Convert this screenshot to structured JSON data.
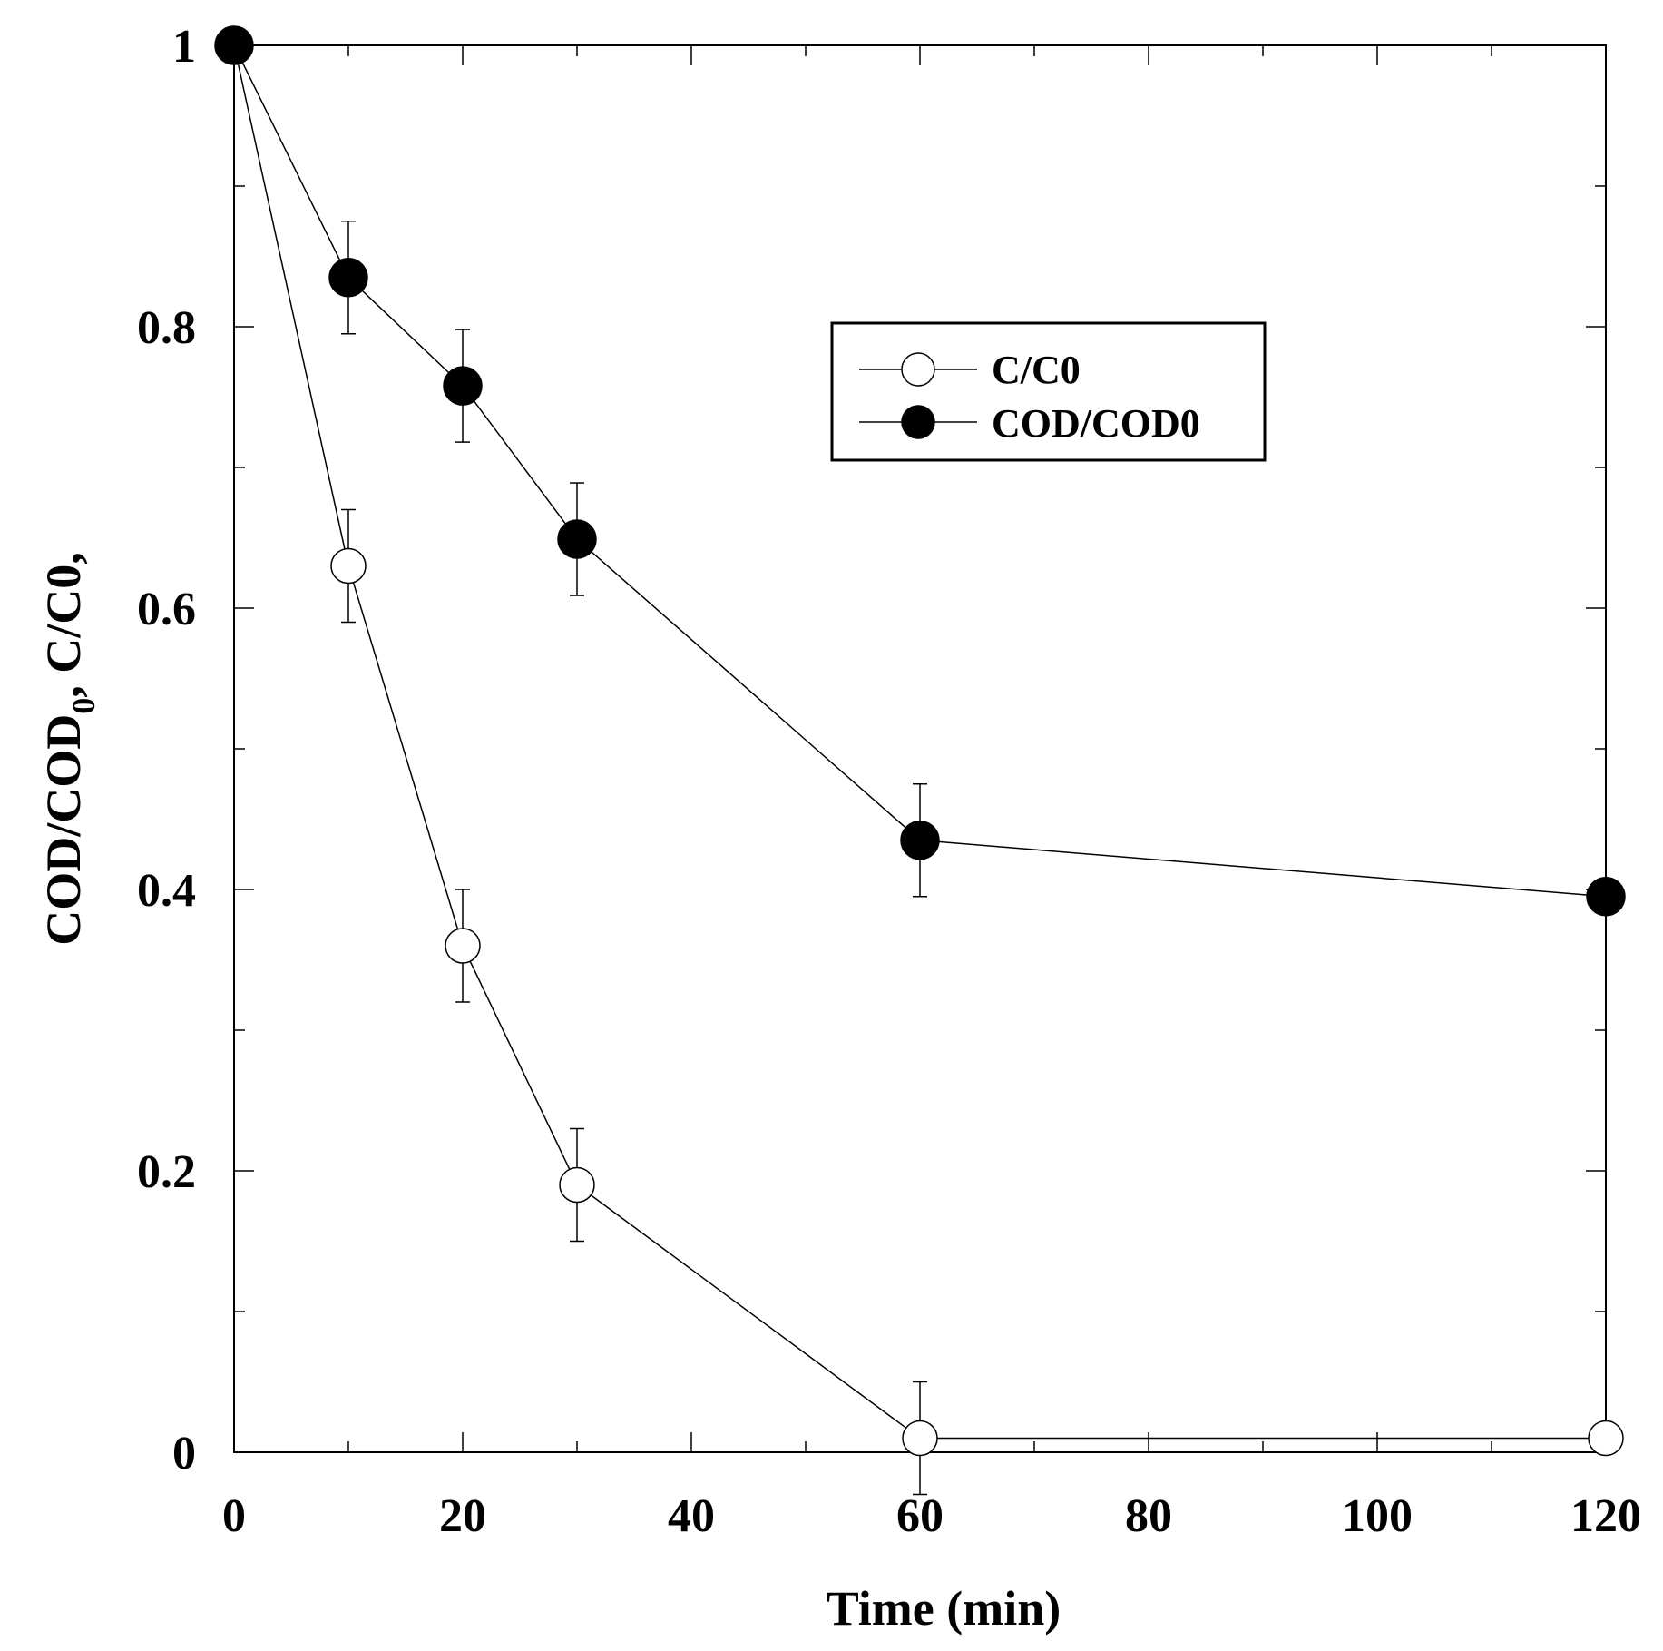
{
  "chart_data": {
    "type": "line",
    "title": "",
    "xlabel": "Time (min)",
    "ylabel": {
      "main": "COD/COD",
      "subscript": "0",
      "rest": ", C/C0,"
    },
    "xlim": [
      0,
      120
    ],
    "ylim": [
      0,
      1
    ],
    "xticks": [
      0,
      20,
      40,
      60,
      80,
      100,
      120
    ],
    "xtick_labels": [
      "0",
      "20",
      "40",
      "60",
      "80",
      "100",
      "120"
    ],
    "yticks": [
      0,
      0.2,
      0.4,
      0.6,
      0.8,
      1
    ],
    "ytick_labels": [
      "0",
      "0.2",
      "0.4",
      "0.6",
      "0.8",
      "1"
    ],
    "grid": false,
    "legend_position": "upper-right-inner",
    "series": [
      {
        "name": "C/C0",
        "marker": "open-circle",
        "x": [
          0,
          10,
          20,
          30,
          60,
          120
        ],
        "y": [
          1.0,
          0.63,
          0.36,
          0.19,
          0.01,
          0.01
        ],
        "error": [
          0,
          0.04,
          0.04,
          0.04,
          0.04,
          0
        ]
      },
      {
        "name": "COD/COD0",
        "marker": "filled-circle",
        "x": [
          0,
          10,
          20,
          30,
          60,
          120
        ],
        "y": [
          1.0,
          0.835,
          0.758,
          0.649,
          0.435,
          0.395
        ],
        "error": [
          0,
          0.04,
          0.04,
          0.04,
          0.04,
          0
        ]
      }
    ]
  }
}
